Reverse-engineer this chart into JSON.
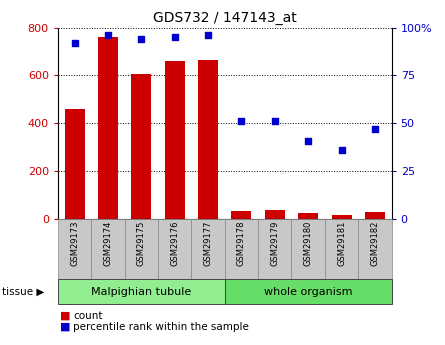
{
  "title": "GDS732 / 147143_at",
  "samples": [
    "GSM29173",
    "GSM29174",
    "GSM29175",
    "GSM29176",
    "GSM29177",
    "GSM29178",
    "GSM29179",
    "GSM29180",
    "GSM29181",
    "GSM29182"
  ],
  "counts": [
    460,
    760,
    605,
    660,
    665,
    35,
    38,
    25,
    18,
    28
  ],
  "percentiles": [
    92,
    96,
    94,
    95,
    96,
    51,
    51,
    41,
    36,
    47
  ],
  "tissue_groups": [
    {
      "label": "Malpighian tubule",
      "start": 0,
      "end": 5,
      "color": "#90EE90"
    },
    {
      "label": "whole organism",
      "start": 5,
      "end": 10,
      "color": "#66DD66"
    }
  ],
  "bar_color": "#CC0000",
  "dot_color": "#0000CC",
  "left_ylim": [
    0,
    800
  ],
  "right_ylim": [
    0,
    100
  ],
  "left_yticks": [
    0,
    200,
    400,
    600,
    800
  ],
  "right_yticks": [
    0,
    25,
    50,
    75,
    100
  ],
  "right_yticklabels": [
    "0",
    "25",
    "50",
    "75",
    "100%"
  ],
  "label_color_left": "#CC0000",
  "label_color_right": "#0000CC",
  "bar_width": 0.6,
  "figsize": [
    4.45,
    3.45
  ],
  "dpi": 100
}
